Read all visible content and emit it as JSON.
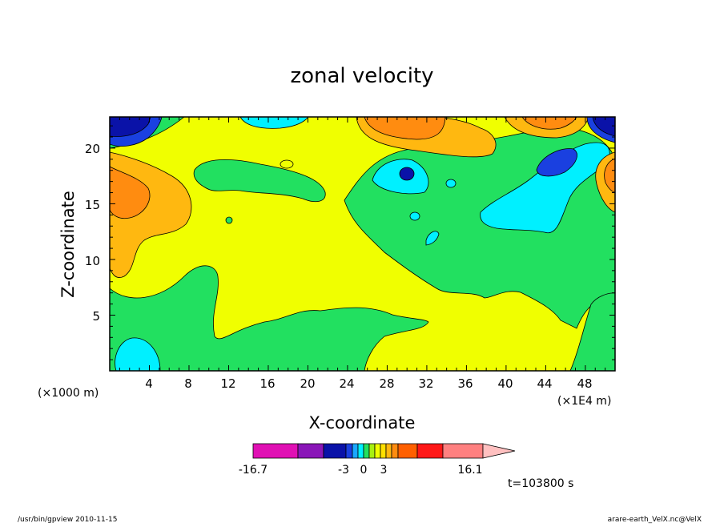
{
  "chart_data": {
    "type": "heatmap",
    "title": "zonal velocity",
    "xlabel": "X-coordinate",
    "ylabel": "Z-coordinate",
    "x_unit": "(×1E4 m)",
    "z_unit": "(×1000 m)",
    "x_ticks": [
      "4",
      "8",
      "12",
      "16",
      "20",
      "24",
      "28",
      "32",
      "36",
      "40",
      "44",
      "48"
    ],
    "z_ticks": [
      "5",
      "10",
      "15",
      "20"
    ],
    "xlim": [
      0,
      51
    ],
    "ylim": [
      0,
      22.8
    ],
    "colorbar": {
      "min_label": "-16.7",
      "max_label": "16.1",
      "tick_labels": [
        "-3",
        "0",
        "3"
      ],
      "min": -16.7,
      "max": 16.1,
      "colors": [
        "#e010b4",
        "#8a16b8",
        "#0a12a8",
        "#1a40e0",
        "#1aa8ff",
        "#00f0ff",
        "#22e060",
        "#a8f010",
        "#f0ff00",
        "#ffe000",
        "#ffb810",
        "#ff8c10",
        "#ff6000",
        "#ff1818",
        "#ff8080",
        "#ffc0c0"
      ]
    },
    "time_label": "t=103800 s"
  },
  "footer": {
    "left": "/usr/bin/gpview   2010-11-15",
    "right": "arare-earth_VelX.nc@VelX"
  },
  "colors": {
    "background": "#ffffff",
    "yellow": "#f0ff00",
    "green": "#22e060",
    "cyan": "#00f0ff",
    "orange": "#ffb810",
    "deep_orange": "#ff8c10",
    "blue": "#1a40e0",
    "navy": "#0a12a8"
  }
}
